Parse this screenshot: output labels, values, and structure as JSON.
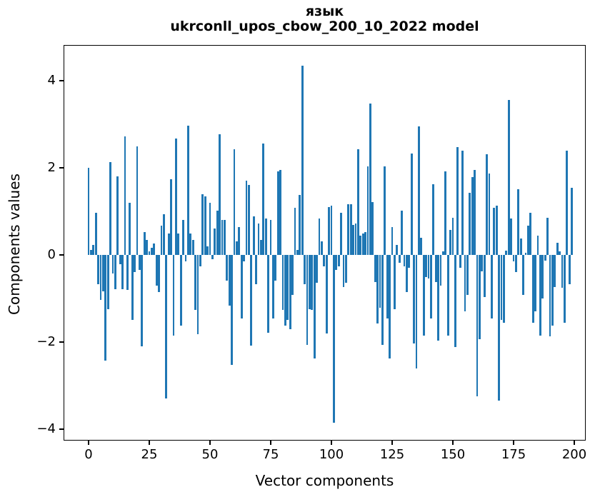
{
  "title": {
    "line1": "язык",
    "line2": "ukrconll_upos_cbow_200_10_2022 model"
  },
  "chart_data": {
    "type": "bar",
    "title": "язык",
    "subtitle": "ukrconll_upos_cbow_200_10_2022 model",
    "xlabel": "Vector components",
    "ylabel": "Components values",
    "bar_color": "#1f77b4",
    "grid": false,
    "legend": null,
    "x_start": 0,
    "x_step": 1,
    "xticks": [
      0,
      25,
      50,
      75,
      100,
      125,
      150,
      175,
      200
    ],
    "yticks": [
      4,
      2,
      0,
      -2,
      -4
    ],
    "xlim": [
      -10.3,
      204.7
    ],
    "ylim": [
      -4.26,
      4.82
    ],
    "values": [
      2.0,
      0.12,
      0.23,
      0.97,
      -0.67,
      -1.03,
      -0.84,
      -2.42,
      -1.25,
      2.13,
      -0.43,
      -0.78,
      1.8,
      -0.21,
      -0.78,
      2.72,
      -0.8,
      1.2,
      -1.49,
      -0.4,
      2.5,
      -0.34,
      -2.1,
      0.53,
      0.34,
      0.09,
      0.17,
      0.26,
      -0.7,
      -0.86,
      0.67,
      0.94,
      -3.3,
      0.5,
      1.73,
      -1.85,
      2.67,
      0.5,
      -1.63,
      0.8,
      -0.15,
      2.96,
      0.5,
      0.34,
      -1.27,
      -1.82,
      -0.26,
      1.4,
      1.34,
      0.2,
      1.19,
      -0.1,
      0.61,
      1.02,
      2.77,
      0.8,
      0.8,
      -0.59,
      -1.16,
      -2.53,
      2.42,
      0.31,
      0.64,
      -1.46,
      -0.15,
      1.71,
      1.6,
      -2.09,
      0.89,
      -0.67,
      0.72,
      0.34,
      2.55,
      0.83,
      -1.79,
      0.8,
      -1.46,
      -0.59,
      1.92,
      1.95,
      -1.27,
      -1.63,
      -1.49,
      -1.71,
      -0.92,
      1.08,
      0.12,
      1.38,
      4.35,
      -0.67,
      -2.07,
      -1.25,
      -1.27,
      -2.37,
      -0.64,
      0.83,
      0.31,
      -0.26,
      -1.8,
      1.1,
      1.13,
      -3.86,
      -0.34,
      -0.26,
      0.97,
      -0.73,
      -0.64,
      1.16,
      1.16,
      0.69,
      0.72,
      2.42,
      0.45,
      0.5,
      0.53,
      2.03,
      3.47,
      1.21,
      -0.62,
      -1.57,
      -1.22,
      -2.07,
      2.03,
      -1.46,
      -2.37,
      0.64,
      -1.25,
      0.23,
      -0.18,
      1.02,
      -0.26,
      -0.86,
      -0.29,
      2.32,
      -2.04,
      -2.61,
      2.95,
      0.39,
      -1.85,
      -0.51,
      -0.54,
      -1.46,
      1.62,
      -0.62,
      -1.96,
      -0.7,
      0.09,
      1.92,
      -1.85,
      0.58,
      0.86,
      -2.12,
      2.47,
      -0.29,
      2.39,
      -1.3,
      -0.92,
      1.43,
      1.79,
      1.95,
      -3.25,
      -1.93,
      -0.37,
      -0.97,
      2.31,
      1.87,
      -1.46,
      1.08,
      1.13,
      -3.35,
      -1.49,
      -1.55,
      0.1,
      3.56,
      0.83,
      -0.15,
      -0.4,
      1.51,
      0.37,
      -0.92,
      0.05,
      0.67,
      0.97,
      -1.55,
      -1.3,
      0.45,
      -1.85,
      -1.0,
      -0.13,
      0.86,
      -1.87,
      -1.63,
      -0.73,
      0.28,
      0.09,
      -0.76,
      -1.55,
      2.4,
      -0.67,
      1.54
    ]
  }
}
